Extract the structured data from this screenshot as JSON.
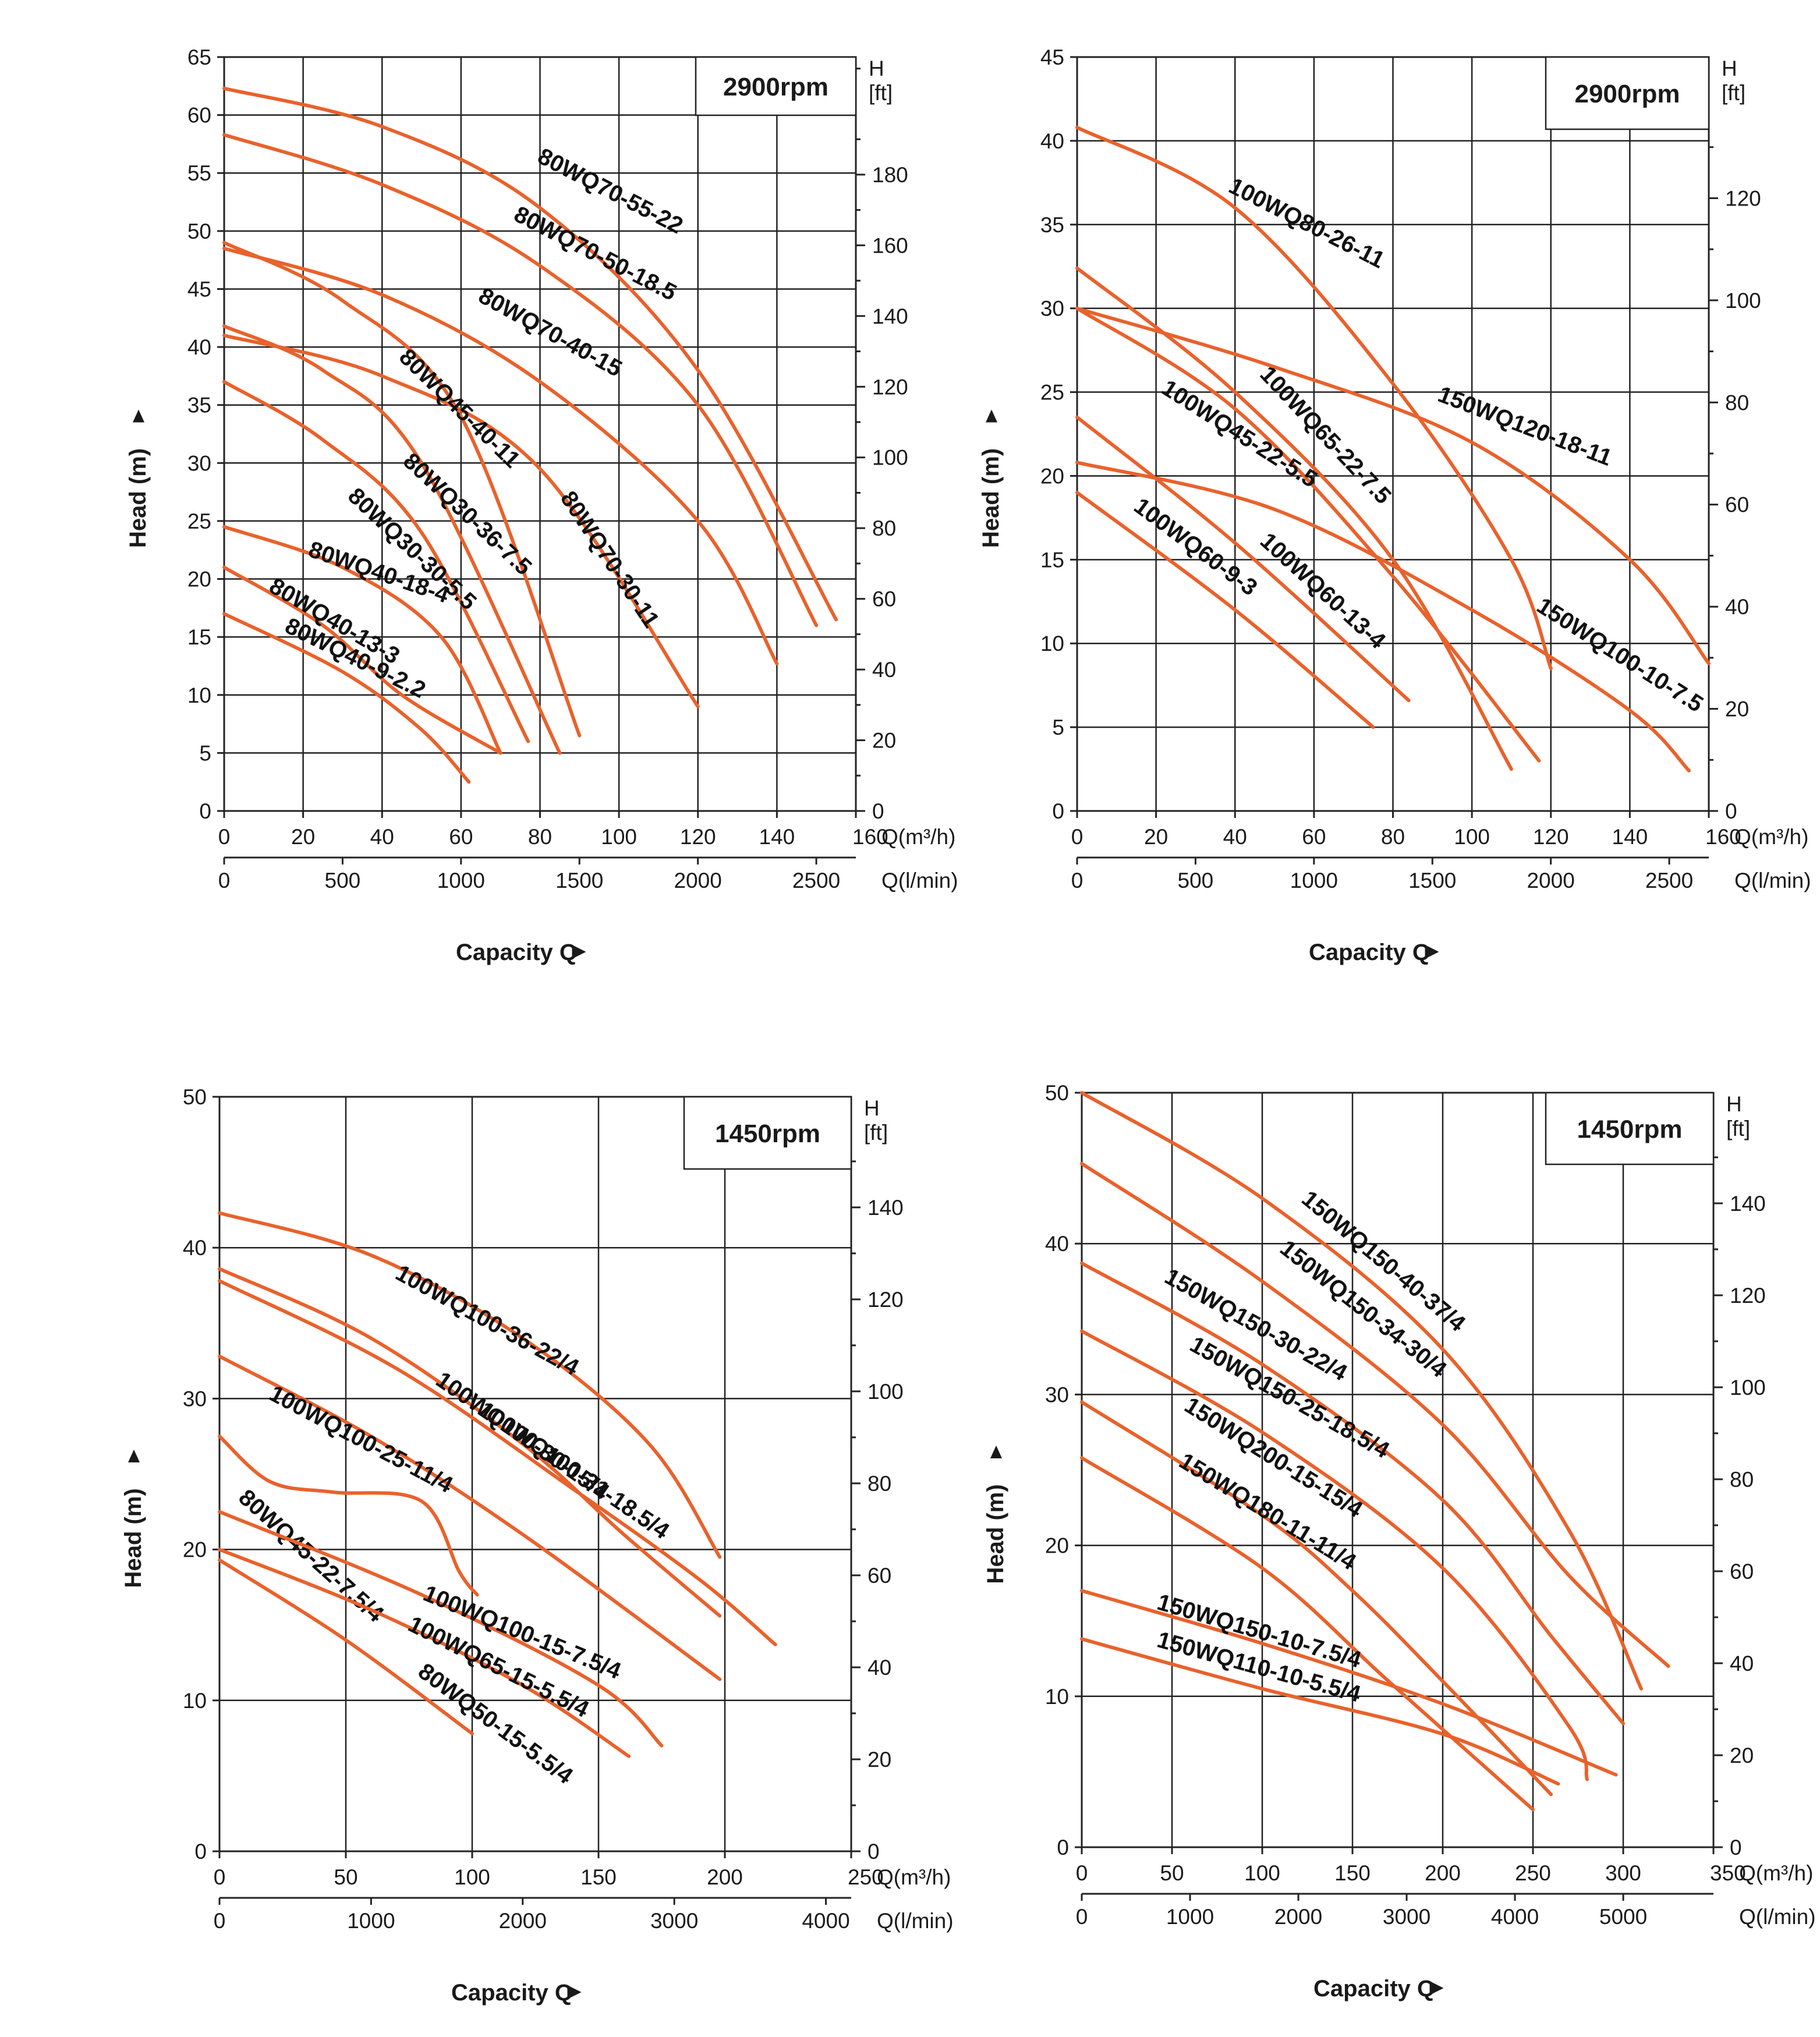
{
  "chart_data": [
    {
      "type": "line",
      "rpm": "2900rpm",
      "ylabel": "Head (m)",
      "xlabel": "Capacity Q",
      "x_unit": "Q(m³/h)",
      "x2_unit": "Q(l/min)",
      "y2_unit_top": "H",
      "y2_unit_bottom": "[ft]",
      "xlim": [
        0,
        160
      ],
      "ylim": [
        0,
        65
      ],
      "x_ticks": [
        0,
        20,
        40,
        60,
        80,
        100,
        120,
        140,
        160
      ],
      "y_ticks": [
        0,
        5,
        10,
        15,
        20,
        25,
        30,
        35,
        40,
        45,
        50,
        55,
        60,
        65
      ],
      "x2_ticks": [
        0,
        500,
        1000,
        1500,
        2000,
        2500
      ],
      "y2_ticks": [
        0,
        20,
        40,
        60,
        80,
        100,
        120,
        140,
        160,
        180
      ],
      "series": [
        {
          "name": "80WQ70-55-22",
          "points": [
            [
              0,
              62.3
            ],
            [
              40,
              59
            ],
            [
              80,
              52
            ],
            [
              120,
              38
            ],
            [
              155,
              16.5
            ]
          ],
          "label_at": [
            79,
            56
          ]
        },
        {
          "name": "80WQ70-50-18.5",
          "points": [
            [
              0,
              58.3
            ],
            [
              40,
              54
            ],
            [
              80,
              47
            ],
            [
              120,
              35
            ],
            [
              150,
              16
            ]
          ],
          "label_at": [
            73,
            51
          ]
        },
        {
          "name": "80WQ70-40-15",
          "points": [
            [
              0,
              48.5
            ],
            [
              40,
              44.5
            ],
            [
              80,
              37
            ],
            [
              120,
              25
            ],
            [
              140,
              12.7
            ]
          ],
          "label_at": [
            64,
            44
          ]
        },
        {
          "name": "80WQ70-30-11",
          "points": [
            [
              0,
              41
            ],
            [
              40,
              37.5
            ],
            [
              80,
              29.5
            ],
            [
              120,
              9
            ]
          ],
          "label_at": [
            85,
            27
          ]
        },
        {
          "name": "80WQ45-40-11",
          "points": [
            [
              0,
              49
            ],
            [
              30,
              44
            ],
            [
              60,
              34
            ],
            [
              90,
              6.5
            ]
          ],
          "label_at": [
            44,
            39
          ]
        },
        {
          "name": "80WQ30-36-7.5",
          "points": [
            [
              0,
              41.8
            ],
            [
              25,
              38
            ],
            [
              50,
              30
            ],
            [
              85,
              5
            ]
          ],
          "label_at": [
            45,
            30
          ]
        },
        {
          "name": "80WQ30-30-5.5",
          "points": [
            [
              0,
              37
            ],
            [
              25,
              32
            ],
            [
              50,
              24
            ],
            [
              77,
              6
            ]
          ],
          "label_at": [
            31,
            27
          ]
        },
        {
          "name": "80WQ40-18-4",
          "points": [
            [
              0,
              24.5
            ],
            [
              30,
              21
            ],
            [
              55,
              15
            ],
            [
              70,
              5
            ]
          ],
          "label_at": [
            21,
            22
          ]
        },
        {
          "name": "80WQ40-13-3",
          "points": [
            [
              0,
              21
            ],
            [
              25,
              16
            ],
            [
              45,
              10
            ],
            [
              70,
              5
            ]
          ],
          "label_at": [
            11,
            19
          ]
        },
        {
          "name": "80WQ40-9-2.2",
          "points": [
            [
              0,
              17
            ],
            [
              30,
              12
            ],
            [
              50,
              7
            ],
            [
              62,
              2.5
            ]
          ],
          "label_at": [
            15,
            15.5
          ]
        }
      ]
    },
    {
      "type": "line",
      "rpm": "2900rpm",
      "ylabel": "Head (m)",
      "xlabel": "Capacity Q",
      "x_unit": "Q(m³/h)",
      "x2_unit": "Q(l/min)",
      "y2_unit_top": "H",
      "y2_unit_bottom": "[ft]",
      "xlim": [
        0,
        160
      ],
      "ylim": [
        0,
        45
      ],
      "x_ticks": [
        0,
        20,
        40,
        60,
        80,
        100,
        120,
        140,
        160
      ],
      "y_ticks": [
        0,
        5,
        10,
        15,
        20,
        25,
        30,
        35,
        40,
        45
      ],
      "x2_ticks": [
        0,
        500,
        1000,
        1500,
        2000,
        2500
      ],
      "y2_ticks": [
        0,
        20,
        40,
        60,
        80,
        100,
        120
      ],
      "series": [
        {
          "name": "100WQ80-26-11",
          "points": [
            [
              0,
              40.8
            ],
            [
              40,
              36
            ],
            [
              80,
              25.5
            ],
            [
              110,
              15
            ],
            [
              120,
              8.5
            ]
          ],
          "label_at": [
            38,
            37
          ]
        },
        {
          "name": "150WQ120-18-11",
          "points": [
            [
              0,
              30
            ],
            [
              50,
              26.5
            ],
            [
              100,
              22
            ],
            [
              140,
              15
            ],
            [
              160,
              8.8
            ]
          ],
          "label_at": [
            91,
            24.5
          ]
        },
        {
          "name": "100WQ65-22-7.5",
          "points": [
            [
              0,
              32.4
            ],
            [
              40,
              25
            ],
            [
              80,
              15
            ],
            [
              110,
              2.5
            ]
          ],
          "label_at": [
            46,
            26
          ]
        },
        {
          "name": "100WQ45-22-5.5",
          "points": [
            [
              0,
              30
            ],
            [
              40,
              24
            ],
            [
              80,
              14
            ],
            [
              117,
              3
            ]
          ],
          "label_at": [
            21,
            25
          ]
        },
        {
          "name": "150WQ100-10-7.5",
          "points": [
            [
              0,
              20.8
            ],
            [
              50,
              18
            ],
            [
              100,
              12
            ],
            [
              140,
              6
            ],
            [
              155,
              2.4
            ]
          ],
          "label_at": [
            116,
            12
          ]
        },
        {
          "name": "100WQ60-13-4",
          "points": [
            [
              0,
              23.5
            ],
            [
              40,
              16
            ],
            [
              84,
              6.6
            ]
          ],
          "label_at": [
            46,
            16
          ]
        },
        {
          "name": "100WQ60-9-3",
          "points": [
            [
              0,
              19
            ],
            [
              40,
              12
            ],
            [
              75,
              5
            ]
          ],
          "label_at": [
            14,
            18
          ]
        }
      ]
    },
    {
      "type": "line",
      "rpm": "1450rpm",
      "ylabel": "Head (m)",
      "xlabel": "Capacity Q",
      "x_unit": "Q(m³/h)",
      "x2_unit": "Q(l/min)",
      "y2_unit_top": "H",
      "y2_unit_bottom": "[ft]",
      "xlim": [
        0,
        250
      ],
      "ylim": [
        0,
        50
      ],
      "x_ticks": [
        0,
        50,
        100,
        150,
        200,
        250
      ],
      "y_ticks": [
        0,
        10,
        20,
        30,
        40,
        50
      ],
      "x2_ticks": [
        0,
        1000,
        2000,
        3000,
        4000
      ],
      "y2_ticks": [
        0,
        20,
        40,
        60,
        80,
        100,
        120,
        140
      ],
      "series": [
        {
          "name": "100WQ100-36-22/4",
          "points": [
            [
              0,
              42.3
            ],
            [
              60,
              39.5
            ],
            [
              120,
              34
            ],
            [
              170,
              27
            ],
            [
              198,
              19.5
            ]
          ],
          "label_at": [
            69,
            38
          ]
        },
        {
          "name": "100WQ100-30-15/4",
          "points": [
            [
              0,
              38.6
            ],
            [
              60,
              34
            ],
            [
              120,
              27
            ],
            [
              160,
              21
            ],
            [
              198,
              15.6
            ]
          ],
          "label_at": [
            85,
            31
          ]
        },
        {
          "name": "100WQ100-31-18.5/4",
          "points": [
            [
              0,
              37.8
            ],
            [
              70,
              32
            ],
            [
              140,
              24
            ],
            [
              190,
              18
            ],
            [
              220,
              13.7
            ]
          ],
          "label_at": [
            102,
            29
          ]
        },
        {
          "name": "100WQ100-25-11/4",
          "points": [
            [
              0,
              32.8
            ],
            [
              60,
              27.5
            ],
            [
              120,
              21
            ],
            [
              198,
              11.4
            ]
          ],
          "label_at": [
            19,
            30
          ]
        },
        {
          "name": "80WQ45-22-7.5/4",
          "points": [
            [
              0,
              27.5
            ],
            [
              20,
              24.5
            ],
            [
              45,
              23.8
            ],
            [
              80,
              23.2
            ],
            [
              95,
              18.5
            ],
            [
              102,
              17
            ]
          ],
          "label_at": [
            7,
            23.3
          ]
        },
        {
          "name": "100WQ100-15-7.5/4",
          "points": [
            [
              0,
              22.5
            ],
            [
              80,
              17
            ],
            [
              150,
              11
            ],
            [
              175,
              7
            ]
          ],
          "label_at": [
            80,
            16.7
          ]
        },
        {
          "name": "100WQ65-15-5.5/4",
          "points": [
            [
              0,
              20
            ],
            [
              60,
              16
            ],
            [
              120,
              11
            ],
            [
              162,
              6.3
            ]
          ],
          "label_at": [
            74,
            14.7
          ]
        },
        {
          "name": "80WQ50-15-5.5/4",
          "points": [
            [
              0,
              19.3
            ],
            [
              50,
              14
            ],
            [
              100,
              7.8
            ]
          ],
          "label_at": [
            78,
            11.7
          ]
        }
      ]
    },
    {
      "type": "line",
      "rpm": "1450rpm",
      "ylabel": "Head (m)",
      "xlabel": "Capacity Q",
      "x_unit": "Q(m³/h)",
      "x2_unit": "Q(l/min)",
      "y2_unit_top": "H",
      "y2_unit_bottom": "[ft]",
      "xlim": [
        0,
        350
      ],
      "ylim": [
        0,
        50
      ],
      "x_ticks": [
        0,
        50,
        100,
        150,
        200,
        250,
        300,
        350
      ],
      "y_ticks": [
        0,
        10,
        20,
        30,
        40,
        50
      ],
      "x2_ticks": [
        0,
        1000,
        2000,
        3000,
        4000,
        5000
      ],
      "y2_ticks": [
        0,
        20,
        40,
        60,
        80,
        100,
        120,
        140
      ],
      "series": [
        {
          "name": "150WQ150-40-37/4",
          "points": [
            [
              0,
              50
            ],
            [
              100,
              43
            ],
            [
              200,
              33
            ],
            [
              270,
              21
            ],
            [
              310,
              10.5
            ]
          ],
          "label_at": [
            121,
            42.8
          ]
        },
        {
          "name": "150WQ150-34-30/4",
          "points": [
            [
              0,
              45.3
            ],
            [
              100,
              37.5
            ],
            [
              200,
              28
            ],
            [
              270,
              18
            ],
            [
              325,
              12
            ]
          ],
          "label_at": [
            109,
            39.5
          ]
        },
        {
          "name": "150WQ150-30-22/4",
          "points": [
            [
              0,
              38.7
            ],
            [
              100,
              32
            ],
            [
              200,
              23
            ],
            [
              260,
              14
            ],
            [
              300,
              8.2
            ]
          ],
          "label_at": [
            45,
            37.5
          ]
        },
        {
          "name": "150WQ150-25-18.5/4",
          "points": [
            [
              0,
              34.2
            ],
            [
              100,
              27.5
            ],
            [
              200,
              18.5
            ],
            [
              270,
              8
            ],
            [
              280,
              4.5
            ]
          ],
          "label_at": [
            59,
            33
          ]
        },
        {
          "name": "150WQ200-15-15/4",
          "points": [
            [
              0,
              29.5
            ],
            [
              100,
              22
            ],
            [
              150,
              17
            ],
            [
              200,
              11
            ],
            [
              260,
              3.5
            ]
          ],
          "label_at": [
            56,
            29
          ]
        },
        {
          "name": "150WQ180-11-11/4",
          "points": [
            [
              0,
              25.8
            ],
            [
              100,
              18.5
            ],
            [
              170,
              11
            ],
            [
              250,
              2.5
            ]
          ],
          "label_at": [
            53,
            25.3
          ]
        },
        {
          "name": "150WQ150-10-7.5/4",
          "points": [
            [
              0,
              17
            ],
            [
              100,
              13.5
            ],
            [
              200,
              9.5
            ],
            [
              296,
              4.8
            ]
          ],
          "label_at": [
            41,
            15.8
          ]
        },
        {
          "name": "150WQ110-10-5.5/4",
          "points": [
            [
              0,
              13.8
            ],
            [
              100,
              10.5
            ],
            [
              200,
              7.5
            ],
            [
              264,
              4.2
            ]
          ],
          "label_at": [
            41,
            13.3
          ]
        }
      ]
    }
  ]
}
